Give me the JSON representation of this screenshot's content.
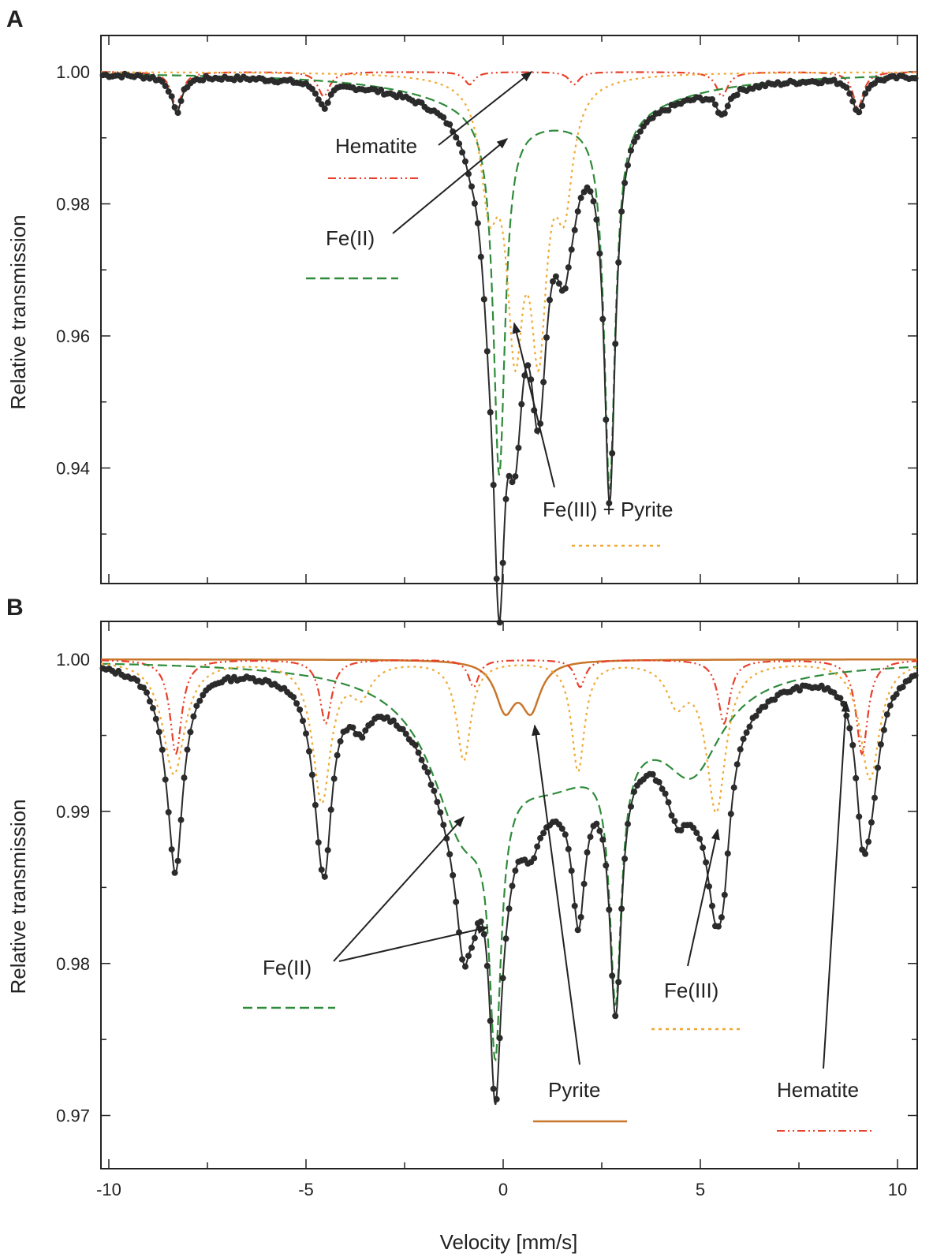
{
  "chart_data": [
    {
      "panel": "A",
      "type": "line",
      "xlabel": "",
      "ylabel": "Relative transmission",
      "xlim": [
        -10.2,
        10.5
      ],
      "ylim": [
        0.9225,
        1.0055
      ],
      "yticks": [
        0.94,
        0.96,
        0.98,
        1.0
      ],
      "ytick_labels": [
        "0.94",
        "0.96",
        "0.98",
        "1.00"
      ],
      "grid": false,
      "series": [
        {
          "name": "Hematite",
          "style": "dash-dot-dot",
          "color": "#e8402a",
          "baseline": 1.0,
          "lines": [
            {
              "c": -8.28,
              "d": 0.0055,
              "w": 0.16
            },
            {
              "c": -4.55,
              "d": 0.0037,
              "w": 0.18
            },
            {
              "c": -0.85,
              "d": 0.0019,
              "w": 0.16
            },
            {
              "c": 1.8,
              "d": 0.0019,
              "w": 0.16
            },
            {
              "c": 5.55,
              "d": 0.0037,
              "w": 0.18
            },
            {
              "c": 9.0,
              "d": 0.0055,
              "w": 0.16
            }
          ]
        },
        {
          "name": "Fe(II)",
          "style": "dashed",
          "color": "#2e8b3a",
          "baseline": 1.0,
          "lines": [
            {
              "c": -0.1,
              "d": 0.0545,
              "w": 0.18
            },
            {
              "c": 2.7,
              "d": 0.0565,
              "w": 0.17
            },
            {
              "c": 0.2,
              "d": 0.0045,
              "w": 2.3
            },
            {
              "c": 2.5,
              "d": 0.0045,
              "w": 2.3
            }
          ]
        },
        {
          "name": "Fe(III) + Pyrite",
          "style": "dotted",
          "color": "#f0a830",
          "baseline": 1.0,
          "lines": [
            {
              "c": -0.35,
              "d": 0.0165,
              "w": 0.26
            },
            {
              "c": 0.3,
              "d": 0.0365,
              "w": 0.26
            },
            {
              "c": 0.9,
              "d": 0.0365,
              "w": 0.26
            },
            {
              "c": 1.55,
              "d": 0.0165,
              "w": 0.26
            }
          ]
        }
      ],
      "measured_points": "Mossbauer spectrum (black dots) with total fit (solid black)",
      "annotations": [
        {
          "text": "Hematite",
          "legend_style": "dash-dot-dot",
          "legend_color": "#e8402a"
        },
        {
          "text": "Fe(II)",
          "legend_style": "dashed",
          "legend_color": "#2e8b3a"
        },
        {
          "text": "Fe(III) + Pyrite",
          "legend_style": "dotted",
          "legend_color": "#f0a830"
        }
      ]
    },
    {
      "panel": "B",
      "type": "line",
      "xlabel": "Velocity [mm/s]",
      "ylabel": "Relative transmission",
      "xlim": [
        -10.2,
        10.5
      ],
      "ylim": [
        0.9665,
        1.0025
      ],
      "xticks": [
        -10,
        -5,
        0,
        5,
        10
      ],
      "xtick_labels": [
        "-10",
        "-5",
        "0",
        "5",
        "10"
      ],
      "yticks": [
        0.97,
        0.98,
        0.99,
        1.0
      ],
      "ytick_labels": [
        "0.97",
        "0.98",
        "0.99",
        "1.00"
      ],
      "grid": false,
      "series": [
        {
          "name": "Pyrite",
          "style": "solid",
          "color": "#c8762a",
          "baseline": 1.0,
          "lines": [
            {
              "c": 0.05,
              "d": 0.0031,
              "w": 0.3
            },
            {
              "c": 0.7,
              "d": 0.0031,
              "w": 0.3
            }
          ]
        },
        {
          "name": "Hematite",
          "style": "dash-dot-dot",
          "color": "#e8402a",
          "baseline": 1.0,
          "lines": [
            {
              "c": -8.3,
              "d": 0.0062,
              "w": 0.18
            },
            {
              "c": -4.5,
              "d": 0.0042,
              "w": 0.18
            },
            {
              "c": -0.75,
              "d": 0.0018,
              "w": 0.16
            },
            {
              "c": 1.95,
              "d": 0.0018,
              "w": 0.16
            },
            {
              "c": 5.6,
              "d": 0.0042,
              "w": 0.18
            },
            {
              "c": 9.1,
              "d": 0.0062,
              "w": 0.18
            }
          ]
        },
        {
          "name": "Fe(II)",
          "style": "dashed",
          "color": "#2e8b3a",
          "baseline": 1.0,
          "lines": [
            {
              "c": -0.2,
              "d": 0.0168,
              "w": 0.18
            },
            {
              "c": 2.85,
              "d": 0.0162,
              "w": 0.18
            },
            {
              "c": -1.0,
              "d": 0.0092,
              "w": 1.0
            },
            {
              "c": 1.1,
              "d": 0.0048,
              "w": 1.6
            },
            {
              "c": 4.8,
              "d": 0.0055,
              "w": 0.9
            },
            {
              "c": 2.6,
              "d": 0.0028,
              "w": 1.8
            }
          ]
        },
        {
          "name": "Fe(III)",
          "style": "dotted",
          "color": "#f0a830",
          "baseline": 1.0,
          "lines": [
            {
              "c": -8.35,
              "d": 0.0075,
              "w": 0.34
            },
            {
              "c": -4.6,
              "d": 0.0092,
              "w": 0.28
            },
            {
              "c": -1.0,
              "d": 0.0065,
              "w": 0.22
            },
            {
              "c": 1.9,
              "d": 0.0072,
              "w": 0.2
            },
            {
              "c": 5.4,
              "d": 0.0098,
              "w": 0.3
            },
            {
              "c": 9.3,
              "d": 0.0078,
              "w": 0.3
            },
            {
              "c": -3.6,
              "d": 0.002,
              "w": 0.3
            },
            {
              "c": 4.4,
              "d": 0.0025,
              "w": 0.3
            }
          ]
        }
      ],
      "measured_points": "Mossbauer spectrum (black dots) with total fit (solid black)",
      "annotations": [
        {
          "text": "Fe(II)",
          "legend_style": "dashed",
          "legend_color": "#2e8b3a"
        },
        {
          "text": "Pyrite",
          "legend_style": "solid",
          "legend_color": "#c8762a"
        },
        {
          "text": "Fe(III)",
          "legend_style": "dotted",
          "legend_color": "#f0a830"
        },
        {
          "text": "Hematite",
          "legend_style": "dash-dot-dot",
          "legend_color": "#e8402a"
        }
      ]
    }
  ],
  "panel_labels": {
    "a": "A",
    "b": "B"
  },
  "axis_titles": {
    "y_a": "Relative transmission",
    "y_b": "Relative transmission",
    "x_b": "Velocity [mm/s]"
  },
  "annotation_labels": {
    "a_hematite": "Hematite",
    "a_fe2": "Fe(II)",
    "a_fe3_pyrite": "Fe(III) + Pyrite",
    "b_fe2": "Fe(II)",
    "b_pyrite": "Pyrite",
    "b_fe3": "Fe(III)",
    "b_hematite": "Hematite"
  },
  "colors": {
    "hematite": "#e8402a",
    "fe2": "#2e8b3a",
    "fe3": "#f0a830",
    "pyrite": "#c8762a",
    "data": "#2b2b2b",
    "axis": "#222222"
  }
}
